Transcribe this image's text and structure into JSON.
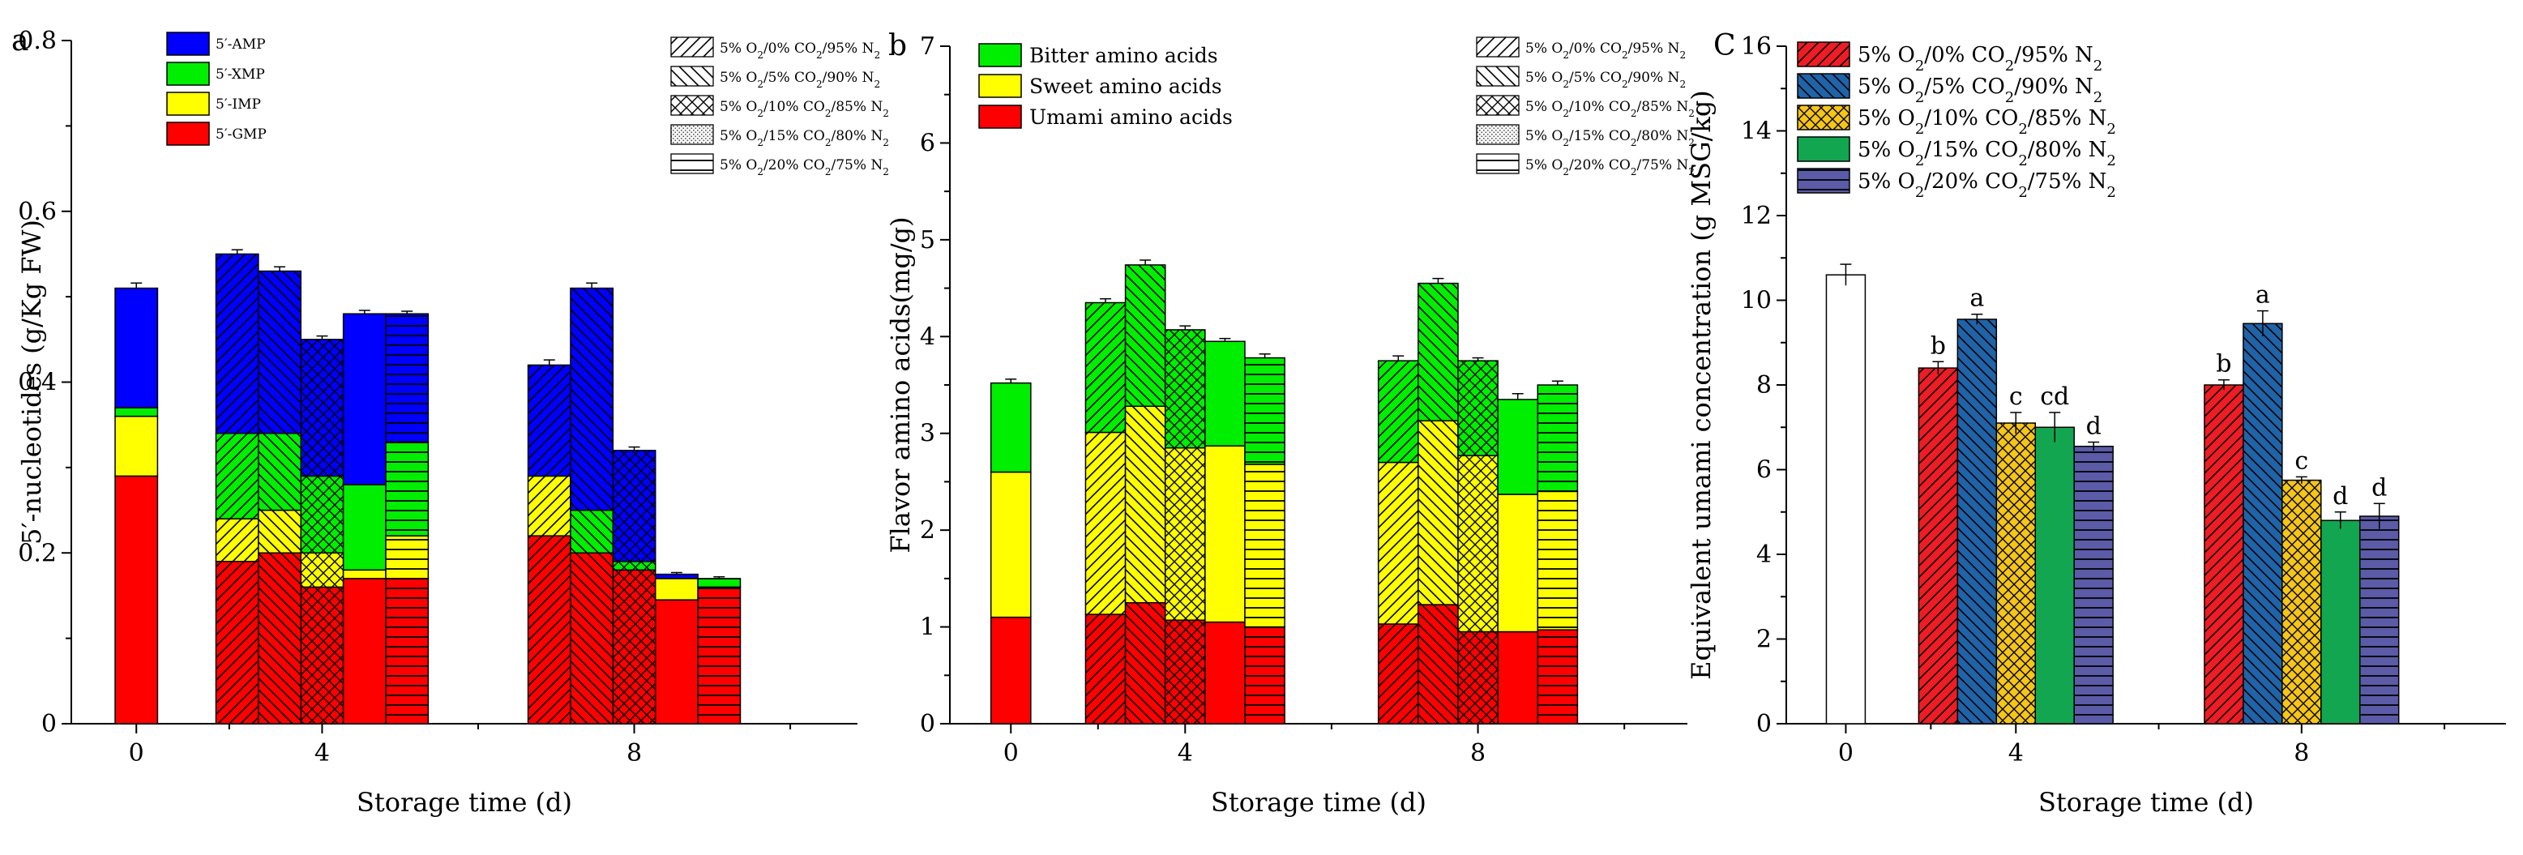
{
  "patterns": {
    "g0": "none",
    "g1": "diag-up",
    "g2": "diag-down",
    "g3": "crosshatch",
    "g4": "horizontal"
  },
  "chart_data": [
    {
      "id": "a",
      "type": "bar",
      "stacked": true,
      "panel": "a",
      "xlabel": "Storage time (d)",
      "ylabel": "5′-nucleotides (g/Kg FW)",
      "ylim": [
        0,
        0.8
      ],
      "yticks": [
        0,
        0.2,
        0.4,
        0.6,
        0.8
      ],
      "ytick_labels": [
        "0",
        "0.2",
        "0.4",
        "0.6",
        "0.8"
      ],
      "x_ticks": [
        "0",
        "4",
        "8"
      ],
      "legend_stack": [
        {
          "key": "amp",
          "label": "5′-AMP",
          "color": "#0000ff"
        },
        {
          "key": "xmp",
          "label": "5′-XMP",
          "color": "#00ee00"
        },
        {
          "key": "imp",
          "label": "5′-IMP",
          "color": "#ffff00"
        },
        {
          "key": "gmp",
          "label": "5′-GMP",
          "color": "#ff0000"
        }
      ],
      "stack_order": [
        "gmp",
        "imp",
        "xmp",
        "amp"
      ],
      "legend_treat": [
        {
          "o2": "5% O",
          "sub1": "2",
          "mid": "/0% CO",
          "sub2": "2",
          "tail": "/95% N",
          "sub3": "2",
          "pattern": "g1"
        },
        {
          "o2": "5% O",
          "sub1": "2",
          "mid": "/5% CO",
          "sub2": "2",
          "tail": "/90% N",
          "sub3": "2",
          "pattern": "g2"
        },
        {
          "o2": "5% O",
          "sub1": "2",
          "mid": "/10% CO",
          "sub2": "2",
          "tail": "/85% N",
          "sub3": "2",
          "pattern": "g3"
        },
        {
          "o2": "5% O",
          "sub1": "2",
          "mid": "/15% CO",
          "sub2": "2",
          "tail": "/80% N",
          "sub3": "2",
          "pattern": "dots"
        },
        {
          "o2": "5% O",
          "sub1": "2",
          "mid": "/20% CO",
          "sub2": "2",
          "tail": "/75% N",
          "sub3": "2",
          "pattern": "g4"
        }
      ],
      "bars": [
        {
          "group": 0,
          "slot": 0,
          "pattern": "g0",
          "values": {
            "gmp": 0.29,
            "imp": 0.07,
            "xmp": 0.01,
            "amp": 0.14
          },
          "err": 0.006
        },
        {
          "group": 1,
          "slot": 0,
          "pattern": "g1",
          "values": {
            "gmp": 0.19,
            "imp": 0.05,
            "xmp": 0.1,
            "amp": 0.21
          },
          "err": 0.005
        },
        {
          "group": 1,
          "slot": 1,
          "pattern": "g2",
          "values": {
            "gmp": 0.2,
            "imp": 0.05,
            "xmp": 0.09,
            "amp": 0.19
          },
          "err": 0.005
        },
        {
          "group": 1,
          "slot": 2,
          "pattern": "g3",
          "values": {
            "gmp": 0.16,
            "imp": 0.04,
            "xmp": 0.09,
            "amp": 0.16
          },
          "err": 0.004
        },
        {
          "group": 1,
          "slot": 3,
          "pattern": "none",
          "values": {
            "gmp": 0.17,
            "imp": 0.01,
            "xmp": 0.1,
            "amp": 0.2
          },
          "err": 0.004
        },
        {
          "group": 1,
          "slot": 4,
          "pattern": "g4",
          "values": {
            "gmp": 0.17,
            "imp": 0.05,
            "xmp": 0.11,
            "amp": 0.15
          },
          "err": 0.003
        },
        {
          "group": 2,
          "slot": 0,
          "pattern": "g1",
          "values": {
            "gmp": 0.22,
            "imp": 0.07,
            "xmp": 0.0,
            "amp": 0.13
          },
          "err": 0.006
        },
        {
          "group": 2,
          "slot": 1,
          "pattern": "g2",
          "values": {
            "gmp": 0.2,
            "imp": 0.0,
            "xmp": 0.05,
            "amp": 0.26
          },
          "err": 0.006
        },
        {
          "group": 2,
          "slot": 2,
          "pattern": "g3",
          "values": {
            "gmp": 0.18,
            "imp": 0.0,
            "xmp": 0.01,
            "amp": 0.13
          },
          "err": 0.004
        },
        {
          "group": 2,
          "slot": 3,
          "pattern": "none",
          "values": {
            "gmp": 0.145,
            "imp": 0.025,
            "xmp": 0.0,
            "amp": 0.005
          },
          "err": 0.002
        },
        {
          "group": 2,
          "slot": 4,
          "pattern": "g4",
          "values": {
            "gmp": 0.16,
            "imp": 0.0,
            "xmp": 0.01,
            "amp": 0.0
          },
          "err": 0.002
        }
      ]
    },
    {
      "id": "b",
      "type": "bar",
      "stacked": true,
      "panel": "b",
      "xlabel": "Storage time (d)",
      "ylabel": "Flavor amino acids(mg/g)",
      "ylim": [
        0,
        7
      ],
      "yticks": [
        0,
        1,
        2,
        3,
        4,
        5,
        6,
        7
      ],
      "ytick_labels": [
        "0",
        "1",
        "2",
        "3",
        "4",
        "5",
        "6",
        "7"
      ],
      "x_ticks": [
        "0",
        "4",
        "8"
      ],
      "legend_stack": [
        {
          "key": "bitter",
          "label": "Bitter amino acids",
          "color": "#00ee00"
        },
        {
          "key": "sweet",
          "label": "Sweet amino acids",
          "color": "#ffff00"
        },
        {
          "key": "umami",
          "label": "Umami amino acids",
          "color": "#ff0000"
        }
      ],
      "stack_order": [
        "umami",
        "sweet",
        "bitter"
      ],
      "legend_treat": [
        {
          "o2": "5% O",
          "sub1": "2",
          "mid": "/0% CO",
          "sub2": "2",
          "tail": "/95% N",
          "sub3": "2",
          "pattern": "g1"
        },
        {
          "o2": "5% O",
          "sub1": "2",
          "mid": "/5% CO",
          "sub2": "2",
          "tail": "/90% N",
          "sub3": "2",
          "pattern": "g2"
        },
        {
          "o2": "5% O",
          "sub1": "2",
          "mid": "/10% CO",
          "sub2": "2",
          "tail": "/85% N",
          "sub3": "2",
          "pattern": "g3"
        },
        {
          "o2": "5% O",
          "sub1": "2",
          "mid": "/15% CO",
          "sub2": "2",
          "tail": "/80% N",
          "sub3": "2",
          "pattern": "dots"
        },
        {
          "o2": "5% O",
          "sub1": "2",
          "mid": "/20% CO",
          "sub2": "2",
          "tail": "/75% N",
          "sub3": "2",
          "pattern": "g4"
        }
      ],
      "bars": [
        {
          "group": 0,
          "slot": 0,
          "pattern": "g0",
          "values": {
            "umami": 1.1,
            "sweet": 1.5,
            "bitter": 0.92
          },
          "err": 0.04
        },
        {
          "group": 1,
          "slot": 0,
          "pattern": "g1",
          "values": {
            "umami": 1.13,
            "sweet": 1.88,
            "bitter": 1.34
          },
          "err": 0.04
        },
        {
          "group": 1,
          "slot": 1,
          "pattern": "g2",
          "values": {
            "umami": 1.25,
            "sweet": 2.03,
            "bitter": 1.46
          },
          "err": 0.05
        },
        {
          "group": 1,
          "slot": 2,
          "pattern": "g3",
          "values": {
            "umami": 1.07,
            "sweet": 1.78,
            "bitter": 1.22
          },
          "err": 0.04
        },
        {
          "group": 1,
          "slot": 3,
          "pattern": "none",
          "values": {
            "umami": 1.05,
            "sweet": 1.82,
            "bitter": 1.08
          },
          "err": 0.03
        },
        {
          "group": 1,
          "slot": 4,
          "pattern": "g4",
          "values": {
            "umami": 1.0,
            "sweet": 1.68,
            "bitter": 1.1
          },
          "err": 0.04
        },
        {
          "group": 2,
          "slot": 0,
          "pattern": "g1",
          "values": {
            "umami": 1.03,
            "sweet": 1.67,
            "bitter": 1.05
          },
          "err": 0.05
        },
        {
          "group": 2,
          "slot": 1,
          "pattern": "g2",
          "values": {
            "umami": 1.23,
            "sweet": 1.9,
            "bitter": 1.42
          },
          "err": 0.05
        },
        {
          "group": 2,
          "slot": 2,
          "pattern": "g3",
          "values": {
            "umami": 0.95,
            "sweet": 1.82,
            "bitter": 0.98
          },
          "err": 0.03
        },
        {
          "group": 2,
          "slot": 3,
          "pattern": "none",
          "values": {
            "umami": 0.95,
            "sweet": 1.42,
            "bitter": 0.98
          },
          "err": 0.06
        },
        {
          "group": 2,
          "slot": 4,
          "pattern": "g4",
          "values": {
            "umami": 0.97,
            "sweet": 1.43,
            "bitter": 1.1
          },
          "err": 0.04
        }
      ]
    },
    {
      "id": "c",
      "type": "bar",
      "stacked": false,
      "panel": "C",
      "xlabel": "Storage time (d)",
      "ylabel": "Equivalent umami concentration (g MSG/kg)",
      "ylim": [
        0,
        16
      ],
      "yticks": [
        0,
        2,
        4,
        6,
        8,
        10,
        12,
        14,
        16
      ],
      "ytick_labels": [
        "0",
        "2",
        "4",
        "6",
        "8",
        "10",
        "12",
        "14",
        "16"
      ],
      "x_ticks": [
        "0",
        "4",
        "8"
      ],
      "legend": [
        {
          "o2": "5% O",
          "sub1": "2",
          "mid": "/0% CO",
          "sub2": "2",
          "tail": "/95% N",
          "sub3": "2",
          "color": "#ee1c24",
          "pattern": "g1"
        },
        {
          "o2": "5% O",
          "sub1": "2",
          "mid": "/5% CO",
          "sub2": "2",
          "tail": "/90% N",
          "sub3": "2",
          "color": "#1f63a8",
          "pattern": "g2"
        },
        {
          "o2": "5% O",
          "sub1": "2",
          "mid": "/10% CO",
          "sub2": "2",
          "tail": "/85% N",
          "sub3": "2",
          "color": "#f5c518",
          "pattern": "g3"
        },
        {
          "o2": "5% O",
          "sub1": "2",
          "mid": "/15% CO",
          "sub2": "2",
          "tail": "/80% N",
          "sub3": "2",
          "color": "#12a650",
          "pattern": "none"
        },
        {
          "o2": "5% O",
          "sub1": "2",
          "mid": "/20% CO",
          "sub2": "2",
          "tail": "/75% N",
          "sub3": "2",
          "color": "#5b5ba8",
          "pattern": "g4"
        }
      ],
      "bars": [
        {
          "group": 0,
          "slot": 0,
          "value": 10.6,
          "err": 0.25,
          "color": "#ffffff",
          "pattern": "g0",
          "label": ""
        },
        {
          "group": 1,
          "slot": 0,
          "value": 8.4,
          "err": 0.15,
          "color": "#ee1c24",
          "pattern": "g1",
          "label": "b"
        },
        {
          "group": 1,
          "slot": 1,
          "value": 9.55,
          "err": 0.12,
          "color": "#1f63a8",
          "pattern": "g2",
          "label": "a"
        },
        {
          "group": 1,
          "slot": 2,
          "value": 7.1,
          "err": 0.25,
          "color": "#f5c518",
          "pattern": "g3",
          "label": "c"
        },
        {
          "group": 1,
          "slot": 3,
          "value": 7.0,
          "err": 0.35,
          "color": "#12a650",
          "pattern": "none",
          "label": "cd"
        },
        {
          "group": 1,
          "slot": 4,
          "value": 6.55,
          "err": 0.1,
          "color": "#5b5ba8",
          "pattern": "g4",
          "label": "d"
        },
        {
          "group": 2,
          "slot": 0,
          "value": 8.0,
          "err": 0.12,
          "color": "#ee1c24",
          "pattern": "g1",
          "label": "b"
        },
        {
          "group": 2,
          "slot": 1,
          "value": 9.45,
          "err": 0.3,
          "color": "#1f63a8",
          "pattern": "g2",
          "label": "a"
        },
        {
          "group": 2,
          "slot": 2,
          "value": 5.75,
          "err": 0.08,
          "color": "#f5c518",
          "pattern": "g3",
          "label": "c"
        },
        {
          "group": 2,
          "slot": 3,
          "value": 4.8,
          "err": 0.2,
          "color": "#12a650",
          "pattern": "none",
          "label": "d"
        },
        {
          "group": 2,
          "slot": 4,
          "value": 4.9,
          "err": 0.3,
          "color": "#5b5ba8",
          "pattern": "g4",
          "label": "d"
        }
      ]
    }
  ]
}
